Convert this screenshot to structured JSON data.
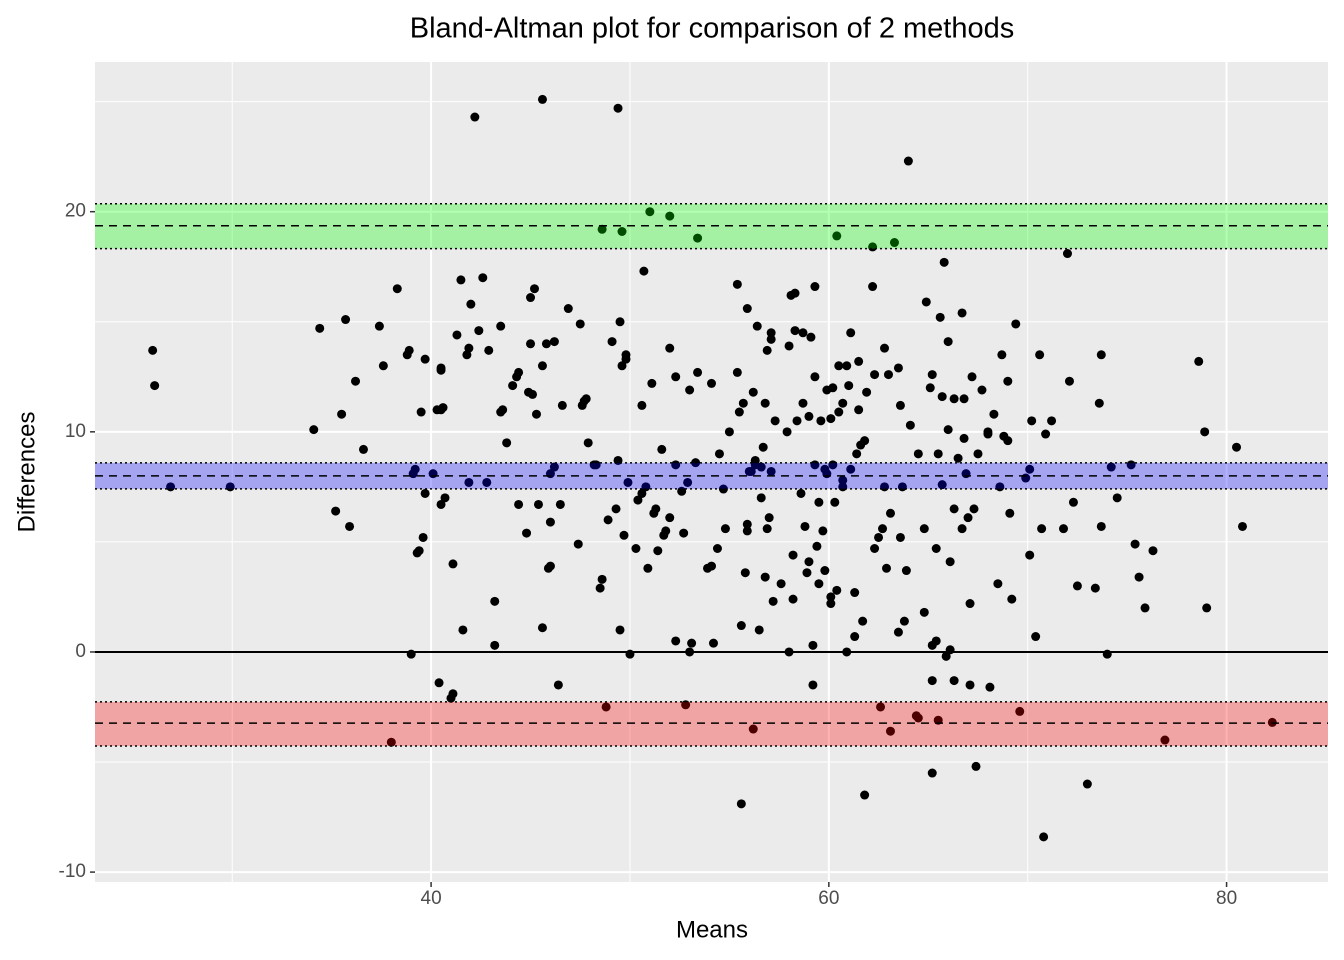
{
  "chart_data": {
    "type": "scatter",
    "title": "Bland-Altman plot for comparison of 2 methods",
    "x_label": "Means",
    "y_label": "Differences",
    "xlim": [
      23.1,
      85.1
    ],
    "ylim": [
      -10.45,
      26.8
    ],
    "xticks": [
      40,
      60,
      80
    ],
    "yticks": [
      -10,
      0,
      10,
      20
    ],
    "grid": true,
    "color": "#000000",
    "reference_line": 0,
    "bands": [
      {
        "center": 19.36,
        "lower": 18.32,
        "upper": 20.36,
        "color": "#00ff00"
      },
      {
        "center": 8.0,
        "lower": 7.41,
        "upper": 8.59,
        "color": "#0000ff"
      },
      {
        "center": -3.23,
        "lower": -4.27,
        "upper": -2.27,
        "color": "#ff0000"
      }
    ],
    "x": [
      26.0,
      26.1,
      26.9,
      29.9,
      34.1,
      34.4,
      35.2,
      35.5,
      35.7,
      35.9,
      36.2,
      36.6,
      37.4,
      37.6,
      38.0,
      38.3,
      38.8,
      38.9,
      39.0,
      39.1,
      39.2,
      39.3,
      39.4,
      39.5,
      39.6,
      39.7,
      39.7,
      40.1,
      40.3,
      40.4,
      40.5,
      40.5,
      40.5,
      40.6,
      40.5,
      40.7,
      41.0,
      41.1,
      41.1,
      41.3,
      41.5,
      41.6,
      41.8,
      41.9,
      42.0,
      41.9,
      42.2,
      42.4,
      42.6,
      42.8,
      42.9,
      43.2,
      43.2,
      43.5,
      43.5,
      43.6,
      43.8,
      44.1,
      44.3,
      44.4,
      44.4,
      44.8,
      44.9,
      45.0,
      45.1,
      45.0,
      45.2,
      45.3,
      45.4,
      45.6,
      45.6,
      45.6,
      45.8,
      45.9,
      46.0,
      46.0,
      46.0,
      46.2,
      46.2,
      46.4,
      46.5,
      46.6,
      46.9,
      47.4,
      47.5,
      47.6,
      47.7,
      47.8,
      47.9,
      48.2,
      48.3,
      48.5,
      48.6,
      48.6,
      48.8,
      48.9,
      49.1,
      49.3,
      49.4,
      49.4,
      49.5,
      49.5,
      49.6,
      49.6,
      49.7,
      49.8,
      49.8,
      49.9,
      50.0,
      50.3,
      50.4,
      50.6,
      50.6,
      50.7,
      50.8,
      50.9,
      51.0,
      51.1,
      51.2,
      51.3,
      51.4,
      51.6,
      51.7,
      51.8,
      52.0,
      52.0,
      52.0,
      52.3,
      52.3,
      52.3,
      52.6,
      52.7,
      52.8,
      52.9,
      53.0,
      53.0,
      53.1,
      53.3,
      53.4,
      53.4,
      53.9,
      54.1,
      54.1,
      54.2,
      54.4,
      54.5,
      54.7,
      54.8,
      55.0,
      55.4,
      55.4,
      55.5,
      55.6,
      55.6,
      55.7,
      55.8,
      55.9,
      55.9,
      55.9,
      56.0,
      56.1,
      56.2,
      56.2,
      56.3,
      56.3,
      56.4,
      56.5,
      56.6,
      56.6,
      56.7,
      56.8,
      56.8,
      56.9,
      56.9,
      57.0,
      57.1,
      57.1,
      57.1,
      57.2,
      57.3,
      57.6,
      57.9,
      58.0,
      58.0,
      58.1,
      58.2,
      58.2,
      58.3,
      58.3,
      58.4,
      58.6,
      58.7,
      58.7,
      58.8,
      58.9,
      59.0,
      59.0,
      59.1,
      59.2,
      59.2,
      59.3,
      59.3,
      59.3,
      59.4,
      59.5,
      59.5,
      59.6,
      59.7,
      59.8,
      59.8,
      59.9,
      59.9,
      60.1,
      60.1,
      60.1,
      60.2,
      60.2,
      60.3,
      60.4,
      60.4,
      60.5,
      60.5,
      60.7,
      60.7,
      60.7,
      60.9,
      60.9,
      61.0,
      61.1,
      61.1,
      61.3,
      61.3,
      61.4,
      61.5,
      61.5,
      61.6,
      61.7,
      61.8,
      61.8,
      61.9,
      62.2,
      62.2,
      62.3,
      62.3,
      62.5,
      62.6,
      62.7,
      62.8,
      62.8,
      62.9,
      63.0,
      63.1,
      63.1,
      63.3,
      63.5,
      63.5,
      63.6,
      63.6,
      63.7,
      63.8,
      63.9,
      64.0,
      64.1,
      64.4,
      64.5,
      64.5,
      64.8,
      64.8,
      64.9,
      65.1,
      65.2,
      65.2,
      65.2,
      65.2,
      65.4,
      65.4,
      65.5,
      65.5,
      65.6,
      65.7,
      65.7,
      65.8,
      65.9,
      66.0,
      66.0,
      66.1,
      66.1,
      66.3,
      66.3,
      66.3,
      66.5,
      66.7,
      66.7,
      66.8,
      66.8,
      66.9,
      67.0,
      67.1,
      67.1,
      67.2,
      67.3,
      67.4,
      67.5,
      67.7,
      68.0,
      68.0,
      68.1,
      68.3,
      68.5,
      68.6,
      68.7,
      68.8,
      69.0,
      69.0,
      69.1,
      69.2,
      69.4,
      69.6,
      69.9,
      70.1,
      70.1,
      70.2,
      70.4,
      70.6,
      70.7,
      70.8,
      70.9,
      71.2,
      71.8,
      72.0,
      72.1,
      72.3,
      72.5,
      73.0,
      73.4,
      73.6,
      73.7,
      73.7,
      74.0,
      74.2,
      74.5,
      75.2,
      75.4,
      75.6,
      75.9,
      76.3,
      76.9,
      78.6,
      78.9,
      79.0,
      80.5,
      80.8,
      82.3
    ],
    "values": [
      13.7,
      12.1,
      7.5,
      7.5,
      10.1,
      14.7,
      6.4,
      10.8,
      15.1,
      5.7,
      12.3,
      9.2,
      14.8,
      13.0,
      -4.1,
      16.5,
      13.5,
      13.7,
      -0.1,
      8.1,
      8.3,
      4.5,
      4.6,
      10.9,
      5.2,
      7.2,
      13.3,
      8.1,
      11.0,
      -1.4,
      12.9,
      12.8,
      11.0,
      11.1,
      6.7,
      7.0,
      -2.1,
      -1.9,
      4.0,
      14.4,
      16.9,
      1.0,
      13.5,
      13.8,
      15.8,
      7.7,
      24.3,
      14.6,
      17.0,
      7.7,
      13.7,
      2.3,
      0.3,
      14.8,
      10.9,
      11.0,
      9.5,
      12.1,
      12.5,
      12.7,
      6.7,
      5.4,
      11.8,
      16.1,
      11.7,
      14.0,
      16.5,
      10.8,
      6.7,
      25.1,
      13.0,
      1.1,
      14.0,
      3.8,
      3.9,
      5.9,
      8.1,
      14.1,
      8.4,
      -1.5,
      6.7,
      11.2,
      15.6,
      4.9,
      14.9,
      11.2,
      11.4,
      11.5,
      9.5,
      8.5,
      8.5,
      2.9,
      19.2,
      3.3,
      -2.5,
      6.0,
      14.1,
      6.5,
      24.7,
      8.7,
      15.0,
      1.0,
      13.0,
      19.1,
      5.3,
      13.5,
      13.3,
      7.7,
      -0.1,
      4.7,
      6.9,
      7.2,
      11.2,
      17.3,
      7.5,
      3.8,
      20.0,
      12.2,
      6.3,
      6.5,
      4.6,
      9.2,
      5.3,
      5.5,
      19.8,
      13.8,
      6.1,
      8.5,
      12.5,
      0.5,
      7.3,
      5.4,
      -2.4,
      7.7,
      11.9,
      0.0,
      0.4,
      8.6,
      12.7,
      18.8,
      3.8,
      12.2,
      3.9,
      0.4,
      4.7,
      9.0,
      7.4,
      5.6,
      10.0,
      16.7,
      12.7,
      10.9,
      -6.9,
      1.2,
      11.3,
      3.6,
      5.5,
      15.6,
      5.8,
      8.2,
      8.2,
      11.8,
      -3.5,
      8.5,
      8.7,
      14.8,
      1.0,
      8.4,
      7.0,
      9.3,
      3.4,
      11.3,
      13.7,
      5.6,
      6.1,
      14.2,
      8.2,
      14.5,
      2.3,
      10.5,
      3.1,
      10.0,
      0.0,
      13.9,
      16.2,
      4.4,
      2.4,
      16.3,
      14.6,
      10.5,
      7.2,
      11.3,
      14.5,
      5.7,
      3.6,
      10.7,
      4.1,
      14.3,
      0.3,
      -1.5,
      16.6,
      12.5,
      8.5,
      4.8,
      6.8,
      3.1,
      10.5,
      5.5,
      3.7,
      8.3,
      11.9,
      8.1,
      2.2,
      10.6,
      2.5,
      8.5,
      12.0,
      6.8,
      2.8,
      18.9,
      13.0,
      10.9,
      7.5,
      7.8,
      11.3,
      13.0,
      0.0,
      12.1,
      8.3,
      14.5,
      2.7,
      0.7,
      9.0,
      11.0,
      13.2,
      9.4,
      1.4,
      9.6,
      -6.5,
      11.8,
      18.4,
      16.6,
      12.6,
      4.7,
      5.2,
      -2.5,
      5.6,
      7.5,
      13.8,
      3.8,
      12.6,
      -3.6,
      6.3,
      18.6,
      12.9,
      0.9,
      11.2,
      5.2,
      7.5,
      1.4,
      3.7,
      22.3,
      10.3,
      -2.9,
      -3.0,
      9.0,
      5.6,
      1.8,
      15.9,
      12.0,
      -5.5,
      0.3,
      12.6,
      -1.3,
      4.7,
      0.5,
      -3.1,
      9.0,
      15.2,
      11.6,
      7.6,
      17.7,
      -0.2,
      14.1,
      10.1,
      0.1,
      4.1,
      6.5,
      -1.3,
      11.5,
      8.8,
      15.4,
      5.6,
      11.5,
      9.7,
      8.1,
      6.1,
      2.2,
      -1.5,
      12.5,
      6.5,
      -5.2,
      9.0,
      11.9,
      10.0,
      9.9,
      -1.6,
      10.8,
      3.1,
      7.5,
      13.5,
      9.8,
      9.6,
      12.3,
      6.3,
      2.4,
      14.9,
      -2.7,
      7.9,
      8.3,
      4.4,
      10.5,
      0.7,
      13.5,
      5.6,
      -8.4,
      9.9,
      10.5,
      5.6,
      18.1,
      12.3,
      6.8,
      3.0,
      -6.0,
      2.9,
      11.3,
      13.5,
      5.7,
      -0.1,
      8.4,
      7.0,
      8.5,
      4.9,
      3.4,
      2.0,
      4.6,
      -4.0,
      13.2,
      10.0,
      2.0,
      9.3,
      5.7,
      -3.2
    ]
  }
}
